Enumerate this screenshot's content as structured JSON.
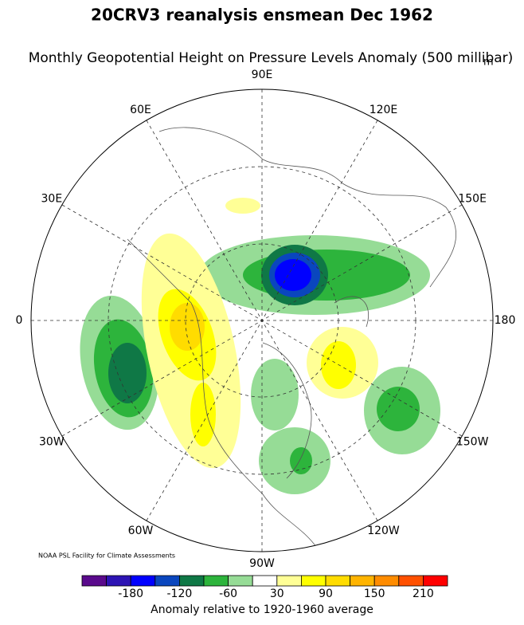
{
  "header": {
    "title": "20CRV3 reanalysis ensmean Dec 1962",
    "subtitle": "Monthly Geopotential Height on Pressure Levels Anomaly (500 millibar)",
    "unit": "m"
  },
  "map": {
    "longitude_labels": [
      "90E",
      "60E",
      "30E",
      "0",
      "30W",
      "60W",
      "90W",
      "120W",
      "150W",
      "180",
      "150E",
      "120E"
    ],
    "credit": "NOAA PSL Facility for Climate Assessments"
  },
  "colorbar": {
    "colors": [
      "#5a0a8c",
      "#2d14b4",
      "#0000ff",
      "#0a46be",
      "#0f7846",
      "#2db43c",
      "#96dc96",
      "#ffffff",
      "#ffff96",
      "#ffff00",
      "#ffdc00",
      "#ffb400",
      "#ff8c00",
      "#ff5000",
      "#ff0000"
    ],
    "labels": [
      -180,
      -120,
      -60,
      30,
      90,
      150,
      210
    ],
    "caption": "Anomaly relative to 1920-1960 average"
  }
}
